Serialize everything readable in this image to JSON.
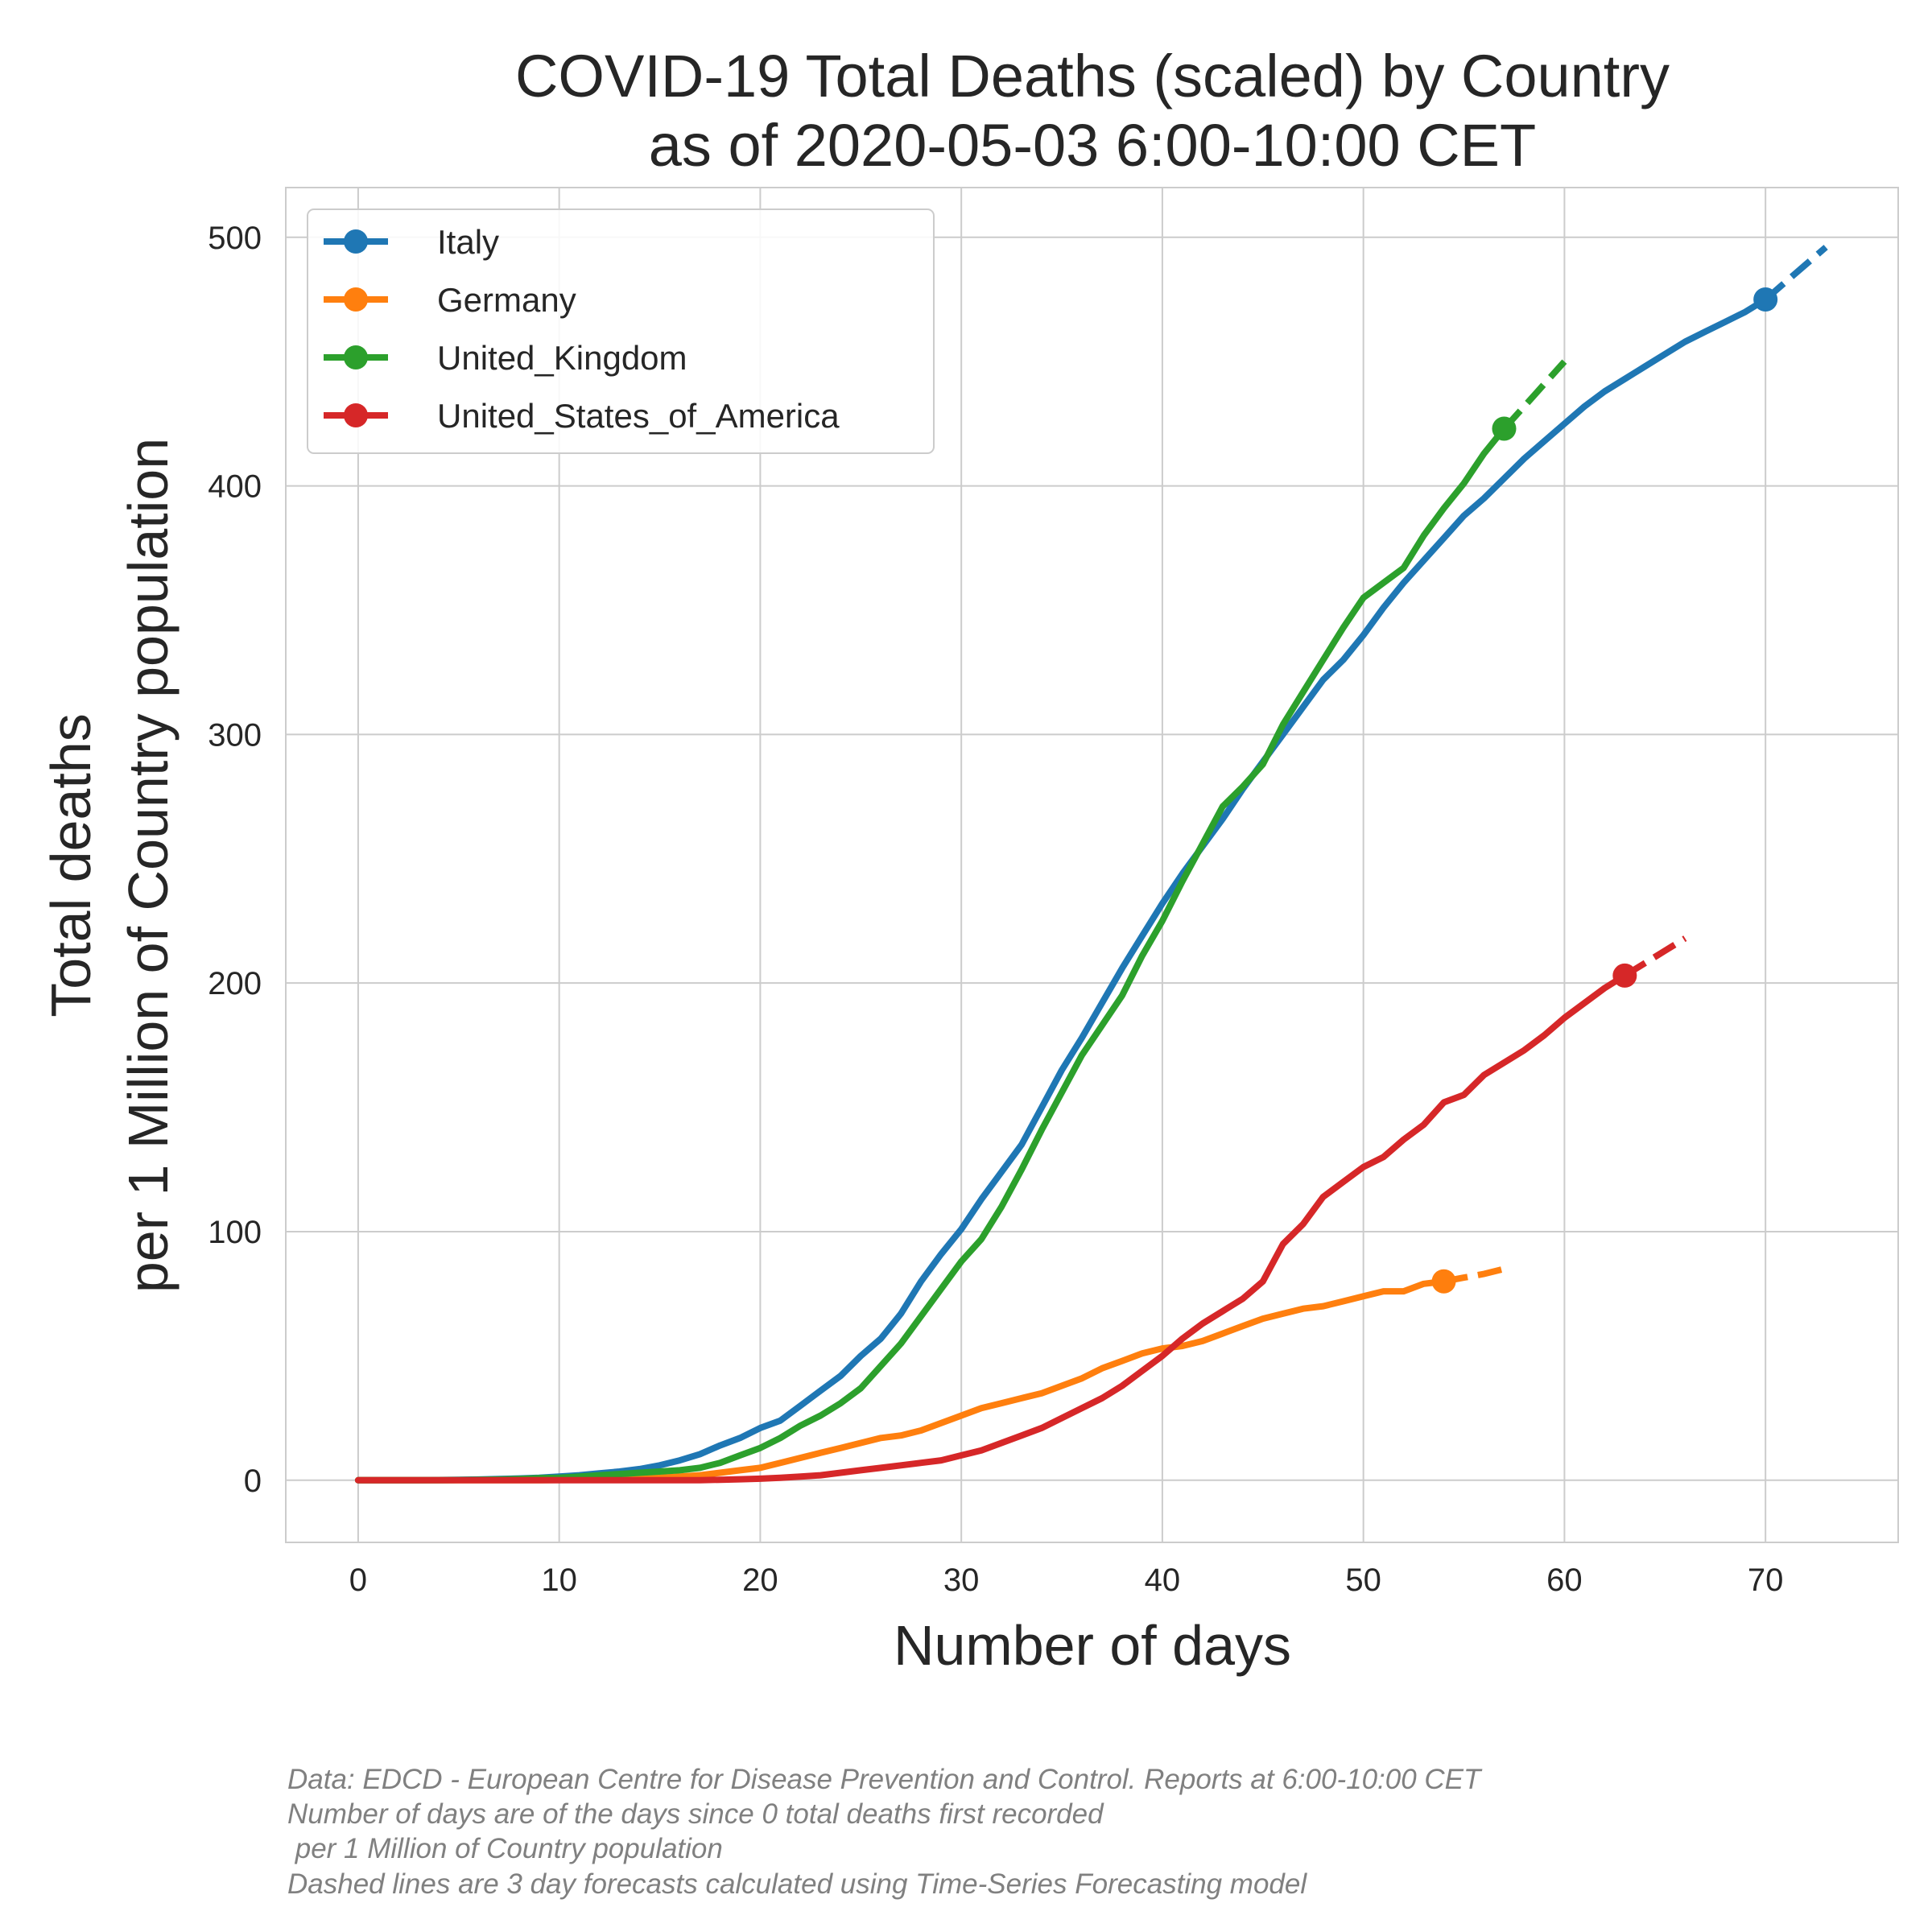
{
  "chart_data": {
    "type": "line",
    "title": [
      "COVID-19 Total Deaths (scaled) by Country",
      "as of 2020-05-03 6:00-10:00 CET"
    ],
    "xlabel": "Number of days",
    "ylabel": [
      "Total deaths",
      "per 1 Million of Country population"
    ],
    "xlim": [
      -3.6,
      76.6
    ],
    "ylim": [
      -25,
      520
    ],
    "xticks": [
      0,
      10,
      20,
      30,
      40,
      50,
      60,
      70
    ],
    "yticks": [
      0,
      100,
      200,
      300,
      400,
      500
    ],
    "grid": true,
    "legend_position": "upper-left",
    "series": [
      {
        "name": "Italy",
        "color": "#1f77b4",
        "x": [
          0,
          1,
          2,
          3,
          4,
          5,
          6,
          7,
          8,
          9,
          10,
          11,
          12,
          13,
          14,
          15,
          16,
          17,
          18,
          19,
          20,
          21,
          22,
          23,
          24,
          25,
          26,
          27,
          28,
          29,
          30,
          31,
          32,
          33,
          34,
          35,
          36,
          37,
          38,
          39,
          40,
          41,
          42,
          43,
          44,
          45,
          46,
          47,
          48,
          49,
          50,
          51,
          52,
          53,
          54,
          55,
          56,
          57,
          58,
          59,
          60,
          61,
          62,
          63,
          64,
          65,
          66,
          67,
          68,
          69,
          70
        ],
        "values": [
          0,
          0,
          0,
          0,
          0.1,
          0.2,
          0.3,
          0.5,
          0.7,
          1,
          1.5,
          2,
          2.8,
          3.5,
          4.5,
          6,
          8,
          10.5,
          14,
          17,
          21,
          24,
          30,
          36,
          42,
          50,
          57,
          67,
          80,
          91,
          101,
          113,
          124,
          135,
          150,
          165,
          178,
          192,
          206,
          219,
          232,
          244,
          255,
          266,
          278,
          289,
          300,
          311,
          322,
          330,
          340,
          351,
          361,
          370,
          379,
          388,
          395,
          403,
          411,
          418,
          425,
          432,
          438,
          443,
          448,
          453,
          458,
          462,
          466,
          470,
          475
        ],
        "forecast_x": [
          70,
          71,
          72,
          73
        ],
        "forecast_values": [
          475,
          482,
          489,
          496
        ]
      },
      {
        "name": "Germany",
        "color": "#ff7f0e",
        "x": [
          0,
          1,
          2,
          3,
          4,
          5,
          6,
          7,
          8,
          9,
          10,
          11,
          12,
          13,
          14,
          15,
          16,
          17,
          18,
          19,
          20,
          21,
          22,
          23,
          24,
          25,
          26,
          27,
          28,
          29,
          30,
          31,
          32,
          33,
          34,
          35,
          36,
          37,
          38,
          39,
          40,
          41,
          42,
          43,
          44,
          45,
          46,
          47,
          48,
          49,
          50,
          51,
          52,
          53,
          54
        ],
        "values": [
          0,
          0,
          0,
          0,
          0,
          0,
          0,
          0,
          0,
          0,
          0.1,
          0.2,
          0.3,
          0.5,
          0.7,
          1,
          1.5,
          2,
          3,
          4,
          5,
          7,
          9,
          11,
          13,
          15,
          17,
          18,
          20,
          23,
          26,
          29,
          31,
          33,
          35,
          38,
          41,
          45,
          48,
          51,
          53,
          54,
          56,
          59,
          62,
          65,
          67,
          69,
          70,
          72,
          74,
          76,
          76,
          79,
          80
        ],
        "forecast_x": [
          54,
          55,
          56,
          57
        ],
        "forecast_values": [
          80,
          81.5,
          83,
          85
        ]
      },
      {
        "name": "United_Kingdom",
        "color": "#2ca02c",
        "x": [
          0,
          1,
          2,
          3,
          4,
          5,
          6,
          7,
          8,
          9,
          10,
          11,
          12,
          13,
          14,
          15,
          16,
          17,
          18,
          19,
          20,
          21,
          22,
          23,
          24,
          25,
          26,
          27,
          28,
          29,
          30,
          31,
          32,
          33,
          34,
          35,
          36,
          37,
          38,
          39,
          40,
          41,
          42,
          43,
          44,
          45,
          46,
          47,
          48,
          49,
          50,
          51,
          52,
          53,
          54,
          55,
          56,
          57
        ],
        "values": [
          0,
          0,
          0,
          0,
          0,
          0.1,
          0.2,
          0.3,
          0.5,
          0.8,
          1,
          1.5,
          2,
          2.5,
          3,
          3.5,
          4,
          5,
          7,
          10,
          13,
          17,
          22,
          26,
          31,
          37,
          46,
          55,
          66,
          77,
          88,
          97,
          110,
          125,
          141,
          156,
          171,
          183,
          195,
          211,
          225,
          241,
          256,
          271,
          279,
          288,
          304,
          317,
          330,
          343,
          355,
          361,
          367,
          380,
          391,
          401,
          413,
          423
        ],
        "forecast_x": [
          57,
          58,
          59,
          60
        ],
        "forecast_values": [
          423,
          432,
          441,
          450
        ]
      },
      {
        "name": "United_States_of_America",
        "color": "#d62728",
        "x": [
          0,
          1,
          2,
          3,
          4,
          5,
          6,
          7,
          8,
          9,
          10,
          11,
          12,
          13,
          14,
          15,
          16,
          17,
          18,
          19,
          20,
          21,
          22,
          23,
          24,
          25,
          26,
          27,
          28,
          29,
          30,
          31,
          32,
          33,
          34,
          35,
          36,
          37,
          38,
          39,
          40,
          41,
          42,
          43,
          44,
          45,
          46,
          47,
          48,
          49,
          50,
          51,
          52,
          53,
          54,
          55,
          56,
          57,
          58,
          59,
          60,
          61,
          62,
          63
        ],
        "values": [
          0,
          0,
          0,
          0,
          0,
          0,
          0,
          0,
          0,
          0,
          0,
          0,
          0,
          0,
          0,
          0,
          0,
          0,
          0.2,
          0.4,
          0.6,
          1,
          1.5,
          2,
          3,
          4,
          5,
          6,
          7,
          8,
          10,
          12,
          15,
          18,
          21,
          25,
          29,
          33,
          38,
          44,
          50,
          57,
          63,
          68,
          73,
          80,
          95,
          103,
          114,
          120,
          126,
          130,
          137,
          143,
          152,
          155,
          163,
          168,
          173,
          179,
          186,
          192,
          198,
          203
        ],
        "forecast_x": [
          63,
          64,
          65,
          66
        ],
        "forecast_values": [
          203,
          208,
          213,
          218
        ]
      }
    ]
  },
  "footnote": [
    "Data: EDCD - European Centre for Disease Prevention and Control. Reports at 6:00-10:00 CET",
    "Number of days are of the days since 0 total deaths first recorded",
    " per 1 Million of Country population",
    "Dashed lines are 3 day forecasts calculated using Time-Series Forecasting model"
  ]
}
